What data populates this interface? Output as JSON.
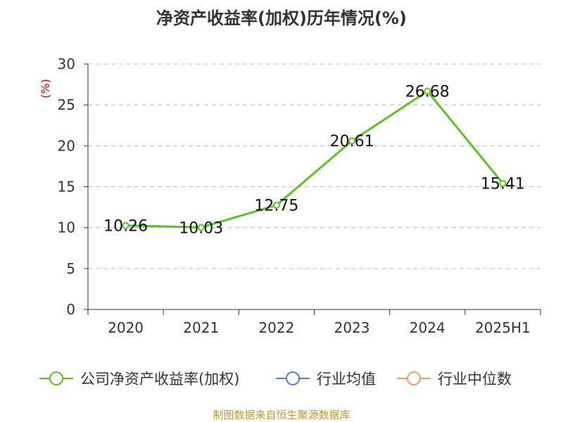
{
  "title": "净资产收益率(加权)历年情况(%)",
  "source": "制图数据来自恒生聚源数据库",
  "colors": {
    "series": "#5dc22a",
    "industry_avg": "#4f7fd8",
    "industry_median": "#f29b6b",
    "axis": "#333333",
    "grid": "#bbbbbb",
    "unit": "#cc0000",
    "source": "#c8962a"
  },
  "legend": [
    {
      "label": "公司净资产收益率(加权)",
      "color": "#5dc22a",
      "icon": "line-circle-icon"
    },
    {
      "label": "行业均值",
      "color": "#4f7fd8",
      "icon": "line-circle-icon"
    },
    {
      "label": "行业中位数",
      "color": "#f29b6b",
      "icon": "line-circle-icon"
    }
  ],
  "chart_data": {
    "type": "line",
    "title": "净资产收益率(加权)历年情况(%)",
    "ylabel": "(%)",
    "xlabel": "",
    "categories": [
      "2020",
      "2021",
      "2022",
      "2023",
      "2024",
      "2025H1"
    ],
    "series": [
      {
        "name": "公司净资产收益率(加权)",
        "values": [
          10.26,
          10.03,
          12.75,
          20.61,
          26.68,
          15.41
        ],
        "labels": [
          "10.26",
          "10.03",
          "12.75",
          "20.61",
          "26.68",
          "15.41"
        ]
      }
    ],
    "ylim": [
      0,
      30
    ],
    "yticks": [
      "0",
      "5",
      "10",
      "15",
      "20",
      "25",
      "30"
    ],
    "grid": true,
    "legend_position": "bottom"
  }
}
